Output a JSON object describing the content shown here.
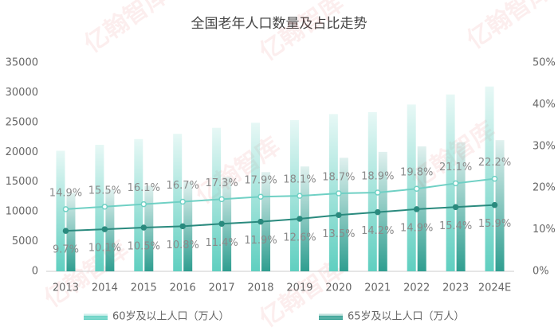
{
  "chart_data": {
    "type": "bar-line",
    "title": "全国老年人口数量及占比走势",
    "watermark": "亿翰智库",
    "categories": [
      "2013",
      "2014",
      "2015",
      "2016",
      "2017",
      "2018",
      "2019",
      "2020",
      "2021",
      "2022",
      "2023",
      "2024E"
    ],
    "ylim": [
      0,
      35000
    ],
    "yticks": [
      0,
      5000,
      10000,
      15000,
      20000,
      25000,
      30000,
      35000
    ],
    "y2lim": [
      0,
      50
    ],
    "y2ticks": [
      {
        "value": 0,
        "label": "0%"
      },
      {
        "value": 10,
        "label": "10%"
      },
      {
        "value": 20,
        "label": "20%"
      },
      {
        "value": 30,
        "label": "30%"
      },
      {
        "value": 40,
        "label": "40%"
      },
      {
        "value": 50,
        "label": "50%"
      }
    ],
    "series": [
      {
        "name": "60岁及以上人口（万人）",
        "type": "bar",
        "color": "#5fcfc0",
        "values": [
          20243,
          21242,
          22200,
          23086,
          24090,
          24949,
          25388,
          26402,
          26736,
          28004,
          29697,
          31031
        ]
      },
      {
        "name": "65岁及以上人口（万人）",
        "type": "bar",
        "color": "#2f9e90",
        "values": [
          13161,
          13755,
          14386,
          15003,
          15831,
          16658,
          17603,
          19064,
          20056,
          20978,
          21676,
          22023
        ]
      },
      {
        "type": "line",
        "axis": "y2",
        "color": "#6fd0c4",
        "values": [
          14.9,
          15.5,
          16.1,
          16.7,
          17.3,
          17.9,
          18.1,
          18.7,
          18.9,
          19.8,
          21.1,
          22.2
        ],
        "value_labels": [
          "14.9%",
          "15.5%",
          "16.1%",
          "16.7%",
          "17.3%",
          "17.9%",
          "18.1%",
          "18.7%",
          "18.9%",
          "19.8%",
          "21.1%",
          "22.2%"
        ]
      },
      {
        "type": "line",
        "axis": "y2",
        "color": "#2a8a7e",
        "values": [
          9.7,
          10.1,
          10.5,
          10.8,
          11.4,
          11.9,
          12.6,
          13.5,
          14.2,
          14.9,
          15.4,
          15.9
        ],
        "value_labels": [
          "9.7%",
          "10.1%",
          "10.5%",
          "10.8%",
          "11.4%",
          "11.9%",
          "12.6%",
          "13.5%",
          "14.2%",
          "14.9%",
          "15.4%",
          "15.9%"
        ]
      }
    ]
  }
}
